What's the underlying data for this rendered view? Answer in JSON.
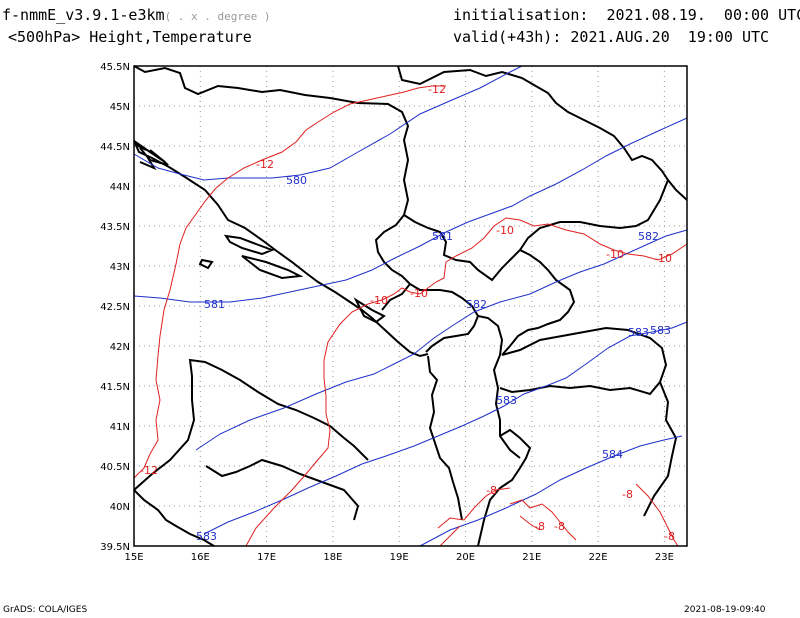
{
  "header": {
    "model": "f-nmmE_v3.9.1-e3km",
    "units": "( . x . degree )",
    "level_vars": "<500hPa> Height,Temperature",
    "init_label": "initialisation:",
    "init_value": "2021.08.19.  00:00 UTC",
    "valid_label": "valid(+43h):",
    "valid_value": "2021.AUG.20  19:00 UTC"
  },
  "footer": {
    "left": "GrADS: COLA/IGES",
    "right": "2021-08-19-09:40"
  },
  "axes": {
    "lon_ticks": [
      "15E",
      "16E",
      "17E",
      "18E",
      "19E",
      "20E",
      "21E",
      "22E",
      "23E"
    ],
    "lat_ticks": [
      "45.5N",
      "45N",
      "44.5N",
      "44N",
      "43.5N",
      "43N",
      "42.5N",
      "42N",
      "41.5N",
      "41N",
      "40.5N",
      "40N",
      "39.5N"
    ]
  },
  "colors": {
    "height_contour": "#2030c8",
    "temperature_contour": "#e02020",
    "borders": "#000000",
    "grid": "#9a9a9a"
  },
  "height_labels": [
    "580",
    "581",
    "581",
    "582",
    "582",
    "583",
    "583",
    "583",
    "584",
    "583"
  ],
  "temperature_labels": [
    "-12",
    "-12",
    "-12",
    "-10",
    "-10",
    "-10",
    "-10",
    "-10",
    "-8",
    "-8",
    "-8",
    "-8",
    "-8"
  ]
}
